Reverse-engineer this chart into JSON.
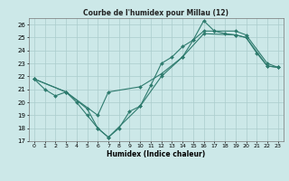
{
  "title": "Courbe de l'humidex pour Millau (12)",
  "xlabel": "Humidex (Indice chaleur)",
  "background_color": "#cce8e8",
  "grid_color": "#aacccc",
  "line_color": "#2e7b6e",
  "xlim": [
    -0.5,
    23.5
  ],
  "ylim": [
    17,
    26.5
  ],
  "yticks": [
    17,
    18,
    19,
    20,
    21,
    22,
    23,
    24,
    25,
    26
  ],
  "xticks": [
    0,
    1,
    2,
    3,
    4,
    5,
    6,
    7,
    8,
    9,
    10,
    11,
    12,
    13,
    14,
    15,
    16,
    17,
    18,
    19,
    20,
    21,
    22,
    23
  ],
  "line1_x": [
    0,
    1,
    2,
    3,
    4,
    5,
    6,
    7,
    8,
    9,
    10,
    11,
    12,
    13,
    14,
    15,
    16,
    17,
    18,
    19,
    20,
    21,
    22,
    23
  ],
  "line1_y": [
    21.8,
    21.0,
    20.5,
    20.8,
    20.0,
    19.0,
    18.0,
    17.3,
    18.0,
    19.3,
    19.7,
    21.3,
    23.0,
    23.5,
    24.3,
    24.8,
    26.3,
    25.5,
    25.3,
    25.2,
    25.0,
    23.8,
    22.8,
    22.7
  ],
  "line2_x": [
    0,
    3,
    6,
    7,
    10,
    12,
    14,
    16,
    19,
    20,
    22,
    23
  ],
  "line2_y": [
    21.8,
    20.8,
    19.0,
    20.8,
    21.2,
    22.2,
    23.5,
    25.3,
    25.2,
    25.0,
    22.8,
    22.7
  ],
  "line3_x": [
    0,
    3,
    5,
    6,
    7,
    10,
    12,
    14,
    15,
    16,
    17,
    19,
    20,
    22,
    23
  ],
  "line3_y": [
    21.8,
    20.8,
    19.5,
    18.0,
    17.3,
    19.7,
    22.0,
    23.5,
    24.8,
    25.5,
    25.5,
    25.5,
    25.2,
    23.0,
    22.7
  ]
}
